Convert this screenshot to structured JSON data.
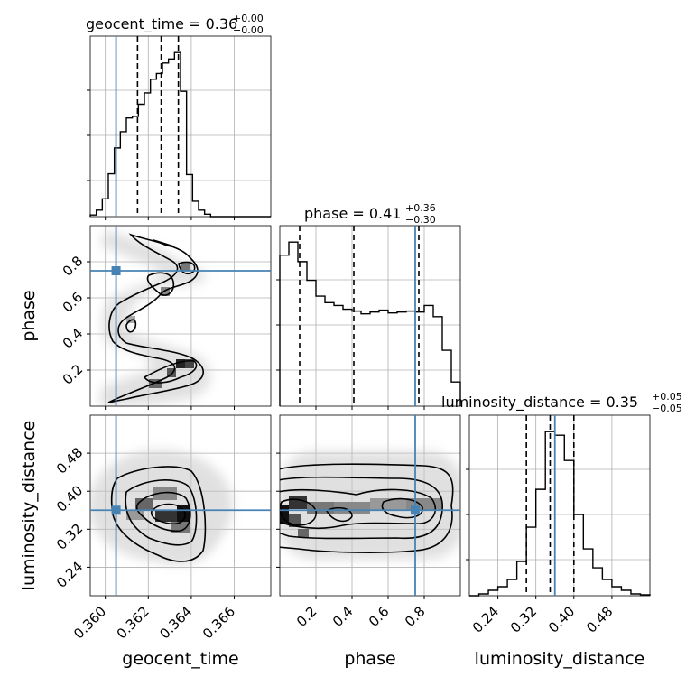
{
  "chart_data": {
    "type": "corner",
    "parameters": [
      "geocent_time",
      "phase",
      "luminosity_distance"
    ],
    "truth": {
      "geocent_time": 0.3605,
      "phase": 0.75,
      "luminosity_distance": 0.36
    },
    "truth_color": "#4682b4",
    "titles": [
      {
        "name": "geocent_time",
        "value": "0.36",
        "plus": "+0.00",
        "minus": "−0.00"
      },
      {
        "name": "phase",
        "value": "0.41",
        "plus": "+0.36",
        "minus": "−0.30"
      },
      {
        "name": "luminosity_distance",
        "value": "0.35",
        "plus": "+0.05",
        "minus": "−0.05"
      }
    ],
    "axes": {
      "geocent_time": {
        "range": [
          0.3593,
          0.3677
        ],
        "ticks": [
          0.36,
          0.362,
          0.364,
          0.366
        ],
        "tick_labels": [
          "0.360",
          "0.362",
          "0.364",
          "0.366"
        ],
        "label": "geocent_time"
      },
      "phase": {
        "range": [
          0.0,
          1.0
        ],
        "ticks": [
          0.2,
          0.4,
          0.6,
          0.8
        ],
        "tick_labels": [
          "0.2",
          "0.4",
          "0.6",
          "0.8"
        ],
        "label": "phase"
      },
      "luminosity_distance": {
        "range": [
          0.18,
          0.56
        ],
        "ticks": [
          0.24,
          0.32,
          0.4,
          0.48
        ],
        "tick_labels": [
          "0.24",
          "0.32",
          "0.40",
          "0.48"
        ],
        "label": "luminosity_distance"
      }
    },
    "histograms": {
      "geocent_time": {
        "edges": [
          0.3593,
          0.35958,
          0.35986,
          0.36014,
          0.36042,
          0.3607,
          0.36098,
          0.36126,
          0.36154,
          0.36182,
          0.3621,
          0.36238,
          0.36266,
          0.36294,
          0.36322,
          0.3635,
          0.36378,
          0.36406,
          0.36434,
          0.36462,
          0.3649,
          0.36518,
          0.36546,
          0.36574,
          0.36602,
          0.3663,
          0.36658,
          0.36686,
          0.36714,
          0.36742,
          0.3677
        ],
        "counts": [
          2,
          8,
          22,
          53,
          85,
          105,
          122,
          124,
          139,
          153,
          170,
          177,
          190,
          195,
          203,
          155,
          52,
          19,
          8,
          3,
          0,
          0,
          0,
          0,
          0,
          0,
          0,
          0,
          0,
          0
        ],
        "quantiles": [
          0.3615,
          0.3626,
          0.3634
        ]
      },
      "phase": {
        "edges": [
          0.0,
          0.05,
          0.1,
          0.15,
          0.2,
          0.25,
          0.3,
          0.35,
          0.4,
          0.45,
          0.5,
          0.55,
          0.6,
          0.65,
          0.7,
          0.75,
          0.8,
          0.85,
          0.9,
          0.95,
          1.0
        ],
        "counts": [
          162,
          176,
          155,
          135,
          118,
          111,
          108,
          104,
          102,
          99,
          101,
          103,
          100,
          101,
          102,
          101,
          108,
          96,
          60,
          26
        ],
        "quantiles": [
          0.11,
          0.41,
          0.77
        ]
      },
      "luminosity_distance": {
        "edges": [
          0.18,
          0.2,
          0.22,
          0.24,
          0.26,
          0.28,
          0.3,
          0.32,
          0.34,
          0.36,
          0.38,
          0.4,
          0.42,
          0.44,
          0.46,
          0.48,
          0.5,
          0.52,
          0.54,
          0.56
        ],
        "counts": [
          0,
          2,
          6,
          10,
          18,
          38,
          76,
          118,
          182,
          178,
          150,
          90,
          52,
          31,
          18,
          10,
          6,
          2,
          1
        ],
        "quantiles": [
          0.3,
          0.35,
          0.4
        ]
      }
    },
    "grid": true
  }
}
